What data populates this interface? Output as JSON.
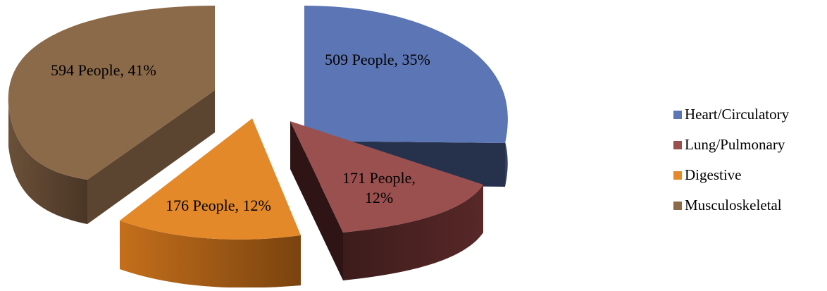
{
  "chart_data": {
    "type": "pie",
    "title": "",
    "categories": [
      "Heart/Circulatory",
      "Lung/Pulmonary",
      "Digestive",
      "Musculoskeletal"
    ],
    "values": [
      509,
      171,
      176,
      594
    ],
    "percentages": [
      35,
      12,
      12,
      41
    ],
    "data_labels": [
      "509 People, 35%",
      "171 People, 12%",
      "176 People, 12%",
      "594 People, 41%"
    ],
    "colors": [
      "#5b75b5",
      "#99504e",
      "#e3892a",
      "#8b6a4a"
    ],
    "exploded": true,
    "legend": {
      "position": "right",
      "entries": [
        "Heart/Circulatory",
        "Lung/Pulmonary",
        "Digestive",
        "Musculoskeletal"
      ]
    }
  }
}
